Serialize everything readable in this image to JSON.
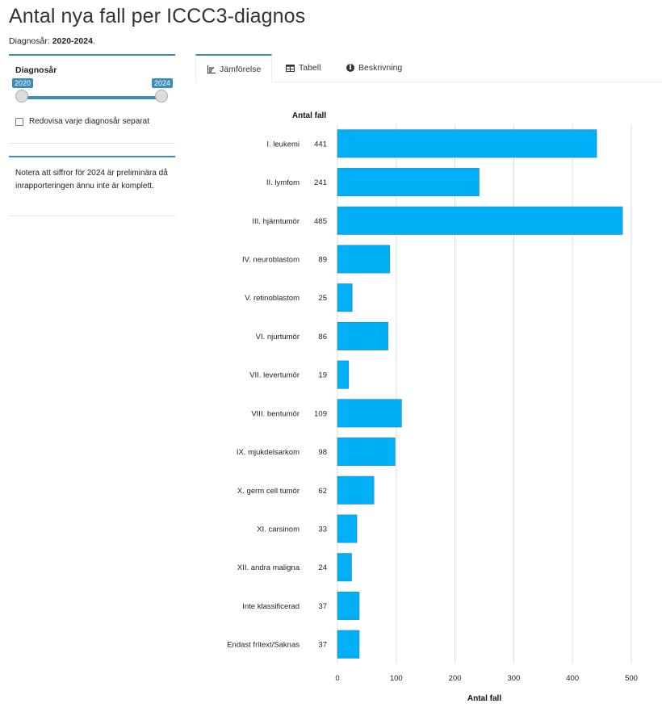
{
  "header": {
    "title": "Antal nya fall per ICCC3-diagnos",
    "subtitle_prefix": "Diagnosår: ",
    "subtitle_value": "2020-2024",
    "subtitle_suffix": "."
  },
  "sidebar": {
    "slider": {
      "label": "Diagnosår",
      "min_label": "2020",
      "max_label": "2024",
      "range": [
        2020,
        2024
      ]
    },
    "checkbox": {
      "label": "Redovisa varje diagnosår separat",
      "checked": false
    },
    "note": "Notera att siffror för 2024 är preliminära då inrapporteringen ännu inte är komplett."
  },
  "tabs": [
    {
      "label": "Jämförelse",
      "icon": "bar-chart-icon",
      "active": true
    },
    {
      "label": "Tabell",
      "icon": "table-icon",
      "active": false
    },
    {
      "label": "Beskrivning",
      "icon": "info-circle-icon",
      "active": false
    }
  ],
  "colors": {
    "bar": "#00b0f6",
    "accent": "#3c8dbc"
  },
  "chart_data": {
    "type": "bar",
    "orientation": "horizontal",
    "categories": [
      "I. leukemi",
      "II. lymfom",
      "III. hjärntumör",
      "IV. neuroblastom",
      "V. retinoblastom",
      "VI. njurtumör",
      "VII. levertumör",
      "VIII. bentumör",
      "IX. mjukdelsarkom",
      "X. germ cell tumör",
      "XI. carsinom",
      "XII. andra maligna",
      "Inte klassificerad",
      "Endast fritext/Saknas"
    ],
    "values": [
      441,
      241,
      485,
      89,
      25,
      86,
      19,
      109,
      98,
      62,
      33,
      24,
      37,
      37
    ],
    "value_column_header": "Antal fall",
    "xlabel": "Antal fall",
    "ylabel": "",
    "xlim": [
      0,
      500
    ],
    "xticks": [
      0,
      100,
      200,
      300,
      400,
      500
    ],
    "grid": true,
    "legend": "none"
  }
}
